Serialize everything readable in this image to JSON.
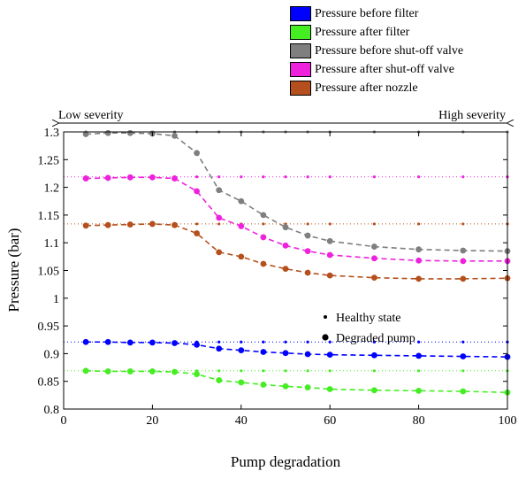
{
  "chart_data": {
    "type": "line",
    "xlabel": "Pump degradation",
    "ylabel": "Pressure (bar)",
    "xlim": [
      0,
      100
    ],
    "ylim": [
      0.8,
      1.3
    ],
    "xticks": [
      "0",
      "20",
      "40",
      "60",
      "80",
      "100"
    ],
    "yticks": [
      "0.8",
      "0.85",
      "0.9",
      "0.95",
      "1",
      "1.05",
      "1.1",
      "1.15",
      "1.2",
      "1.25",
      "1.3"
    ],
    "severity_labels": {
      "low": "Low severity",
      "high": "High severity"
    },
    "marker_legend": [
      {
        "label": "Healthy state",
        "marker": "small-dot"
      },
      {
        "label": "Degraded pump",
        "marker": "large-dot"
      }
    ],
    "x": [
      5,
      10,
      15,
      20,
      25,
      30,
      35,
      40,
      45,
      50,
      55,
      60,
      70,
      80,
      90,
      100
    ],
    "series": [
      {
        "name": "Pressure before filter",
        "color": "#0000ff",
        "healthy": 0.921,
        "values": [
          0.921,
          0.921,
          0.92,
          0.92,
          0.919,
          0.916,
          0.909,
          0.906,
          0.903,
          0.901,
          0.899,
          0.898,
          0.897,
          0.896,
          0.895,
          0.894
        ]
      },
      {
        "name": "Pressure after filter",
        "color": "#44ee22",
        "healthy": 0.869,
        "values": [
          0.869,
          0.868,
          0.868,
          0.868,
          0.867,
          0.863,
          0.852,
          0.848,
          0.844,
          0.841,
          0.839,
          0.836,
          0.834,
          0.833,
          0.832,
          0.83
        ]
      },
      {
        "name": "Pressure before shut-off valve",
        "color": "#7f7f7f",
        "healthy": 1.3,
        "values": [
          1.296,
          1.298,
          1.298,
          1.297,
          1.293,
          1.262,
          1.195,
          1.175,
          1.15,
          1.128,
          1.113,
          1.103,
          1.093,
          1.088,
          1.086,
          1.085
        ]
      },
      {
        "name": "Pressure after shut-off valve",
        "color": "#ee22dd",
        "healthy": 1.219,
        "values": [
          1.216,
          1.217,
          1.218,
          1.218,
          1.216,
          1.193,
          1.145,
          1.13,
          1.11,
          1.095,
          1.085,
          1.078,
          1.072,
          1.068,
          1.067,
          1.067
        ]
      },
      {
        "name": "Pressure after nozzle",
        "color": "#b5501e",
        "healthy": 1.134,
        "values": [
          1.131,
          1.132,
          1.133,
          1.134,
          1.132,
          1.117,
          1.083,
          1.075,
          1.062,
          1.053,
          1.046,
          1.041,
          1.037,
          1.035,
          1.035,
          1.036
        ]
      }
    ]
  }
}
